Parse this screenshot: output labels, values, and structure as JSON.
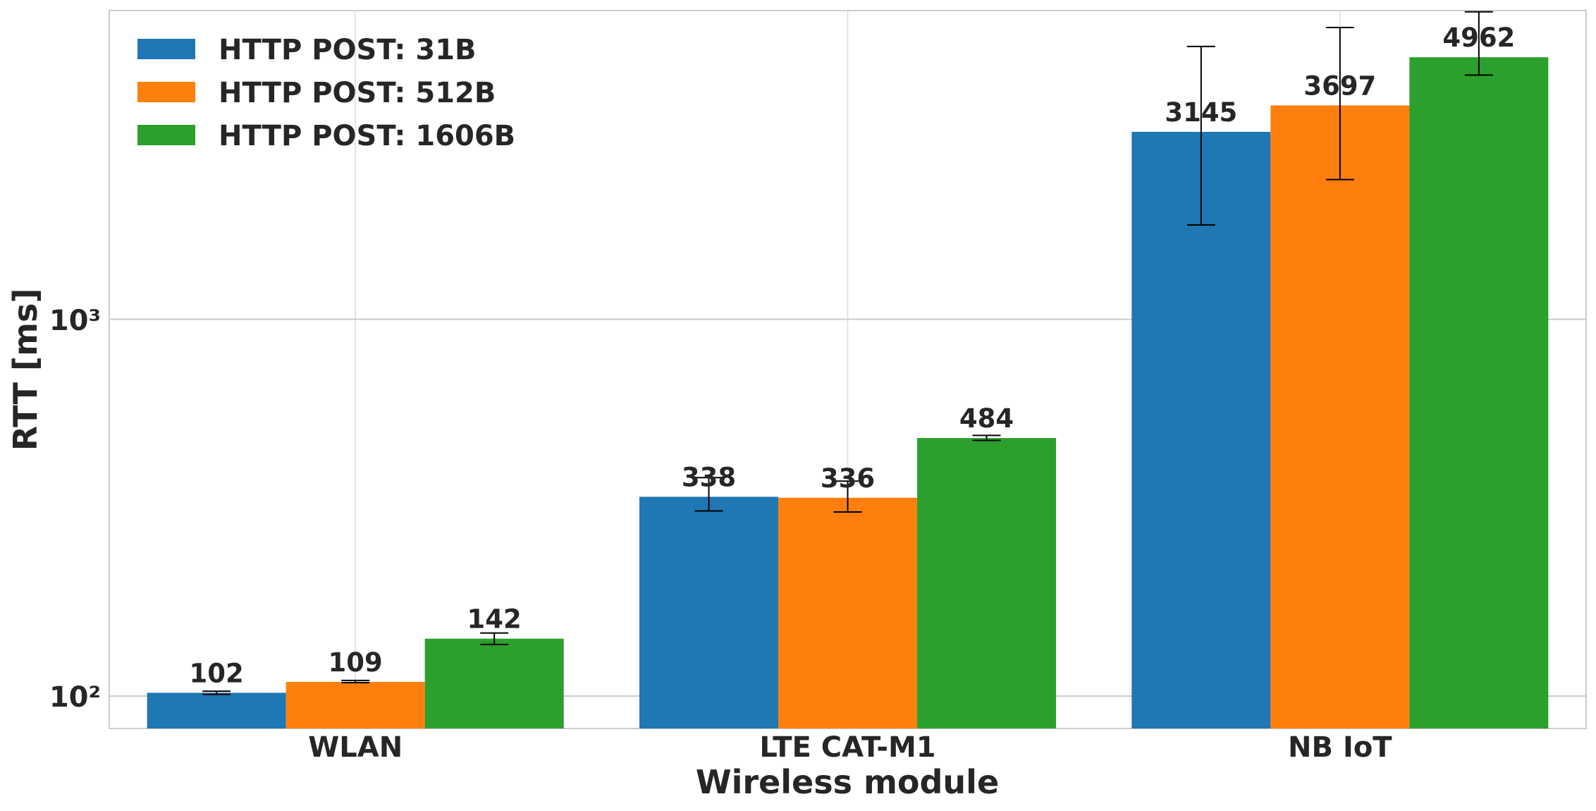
{
  "chart_data": {
    "type": "bar",
    "title": "",
    "xlabel": "Wireless module",
    "ylabel": "RTT [ms]",
    "yscale": "log",
    "ylim": [
      82,
      6600
    ],
    "yticks": [
      {
        "value": 100,
        "label": "10²"
      },
      {
        "value": 1000,
        "label": "10³"
      }
    ],
    "grid": true,
    "legend_position": "top-left",
    "categories": [
      "WLAN",
      "LTE CAT-M1",
      "NB IoT"
    ],
    "series": [
      {
        "name": "HTTP POST: 31B",
        "color": "#1f77b4",
        "values": [
          102,
          338,
          3145
        ],
        "err_low": [
          101,
          310,
          1780
        ],
        "err_high": [
          103,
          380,
          5300
        ]
      },
      {
        "name": "HTTP POST: 512B",
        "color": "#ff7f0e",
        "values": [
          109,
          336,
          3697
        ],
        "err_low": [
          108.5,
          308,
          2350
        ],
        "err_high": [
          110,
          372,
          5950
        ]
      },
      {
        "name": "HTTP POST: 1606B",
        "color": "#2ca02c",
        "values": [
          142,
          484,
          4962
        ],
        "err_low": [
          137,
          477,
          4450
        ],
        "err_high": [
          147,
          492,
          6550
        ]
      }
    ],
    "data_labels": [
      [
        "102",
        "338",
        "3145"
      ],
      [
        "109",
        "336",
        "3697"
      ],
      [
        "142",
        "484",
        "4962"
      ]
    ]
  }
}
